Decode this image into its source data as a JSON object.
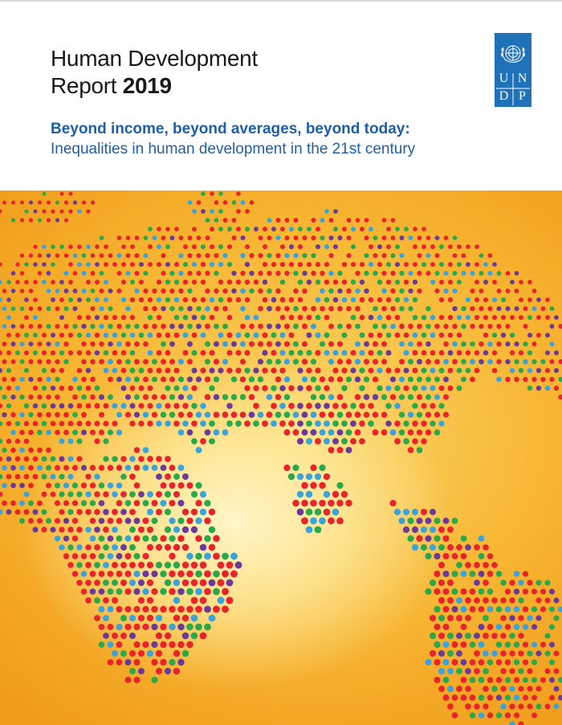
{
  "cover": {
    "title_line1": "Human Development",
    "title_line2_prefix": "Report ",
    "title_year": "2019",
    "subtitle_bold": "Beyond income, beyond averages, beyond today:",
    "subtitle_regular": "Inequalities in human development in the 21st century"
  },
  "logo": {
    "letters": [
      "U",
      "N",
      "D",
      "P"
    ],
    "color": "#1f72b8"
  },
  "hero": {
    "image": "dotted-world-globe",
    "dot_colors": [
      "#e8242b",
      "#2aa84a",
      "#3aa3dc",
      "#6b3a98"
    ]
  },
  "colors": {
    "subtitle": "#1e5fa8",
    "title": "#1a1a1a"
  }
}
